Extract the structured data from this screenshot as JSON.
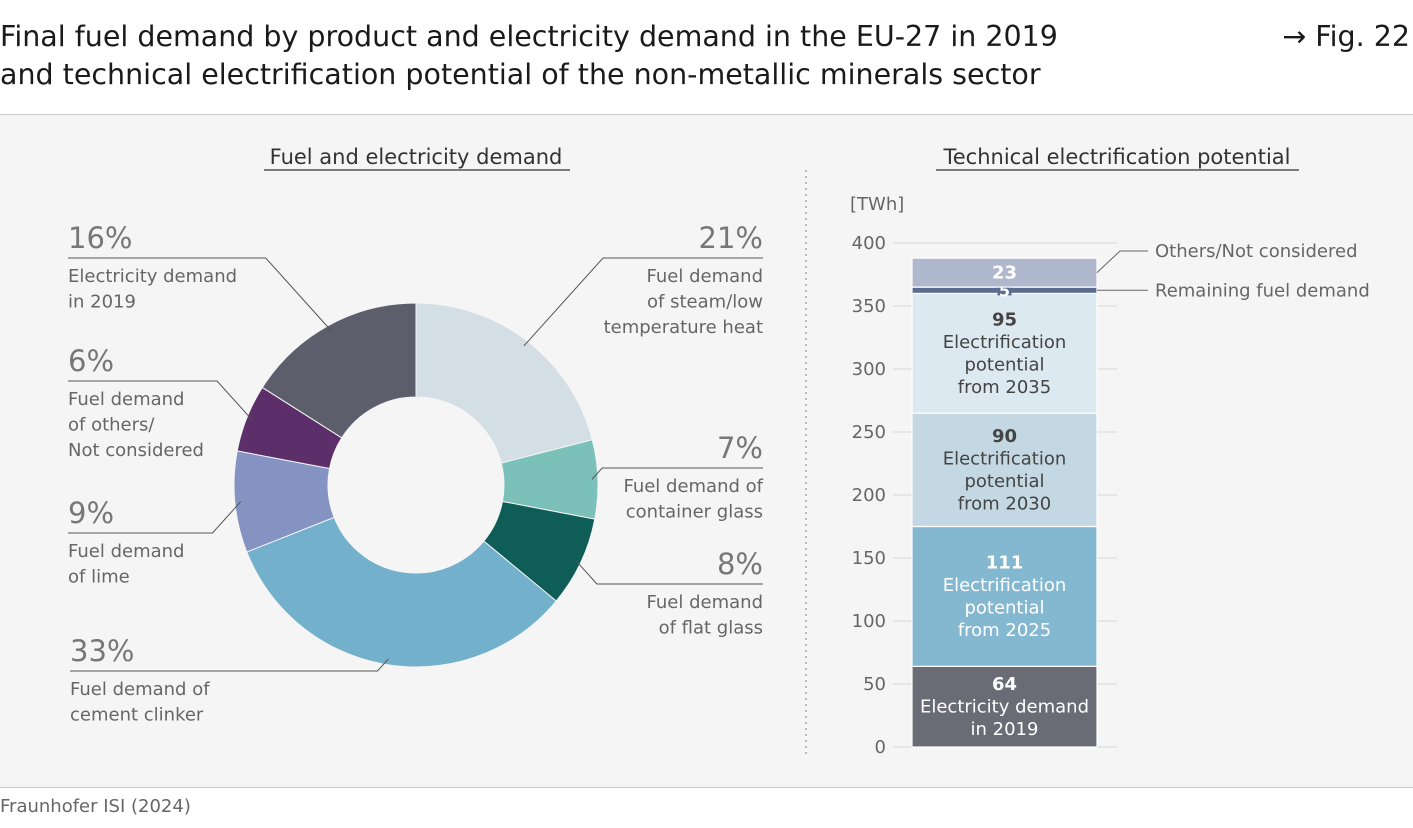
{
  "header": {
    "title_line1": "Final fuel demand by product and electricity demand in the EU-27 in 2019",
    "title_line2": "and technical electrification potential of the non-metallic minerals sector",
    "fig_ref": "→ Fig. 22"
  },
  "footer": {
    "source": "Fraunhofer ISI (2024)"
  },
  "colors": {
    "electricity": "#5c5e6b",
    "steam": "#d4dee5",
    "container_glass": "#7cc0ba",
    "flat_glass": "#0e5d56",
    "cement": "#72b0cb",
    "lime": "#8493c2",
    "others": "#5c2f6a",
    "bar_electricity": "#6b6b76",
    "bar_2025": "#84b8d0",
    "bar_2030": "#c4d8e3",
    "bar_2035": "#dde9f1",
    "bar_remaining": "#5c6b8e",
    "bar_others": "#b0b8cd"
  },
  "chart_data": [
    {
      "type": "pie",
      "title": "Fuel and electricity demand",
      "slices": [
        {
          "pct_label": "21%",
          "value": 21,
          "label_lines": [
            "Fuel demand",
            "of steam/low",
            "temperature heat"
          ]
        },
        {
          "pct_label": "7%",
          "value": 7,
          "label_lines": [
            "Fuel demand of",
            "container glass"
          ]
        },
        {
          "pct_label": "8%",
          "value": 8,
          "label_lines": [
            "Fuel demand",
            "of flat glass"
          ]
        },
        {
          "pct_label": "33%",
          "value": 33,
          "label_lines": [
            "Fuel demand of",
            "cement clinker"
          ]
        },
        {
          "pct_label": "9%",
          "value": 9,
          "label_lines": [
            "Fuel demand",
            "of lime"
          ]
        },
        {
          "pct_label": "6%",
          "value": 6,
          "label_lines": [
            "Fuel demand",
            "of others/",
            "Not considered"
          ]
        },
        {
          "pct_label": "16%",
          "value": 16,
          "label_lines": [
            "Electricity demand",
            "in 2019"
          ]
        }
      ]
    },
    {
      "type": "bar",
      "stacked": true,
      "title": "Technical electrification potential",
      "unit": "[TWh]",
      "ylim": [
        0,
        400
      ],
      "yticks": [
        0,
        50,
        100,
        150,
        200,
        250,
        300,
        350,
        400
      ],
      "segments": [
        {
          "value": 64,
          "label_lines": [
            "Electricity demand",
            "in 2019"
          ]
        },
        {
          "value": 111,
          "label_lines": [
            "Electrification",
            "potential",
            "from 2025"
          ]
        },
        {
          "value": 90,
          "label_lines": [
            "Electrification",
            "potential",
            "from 2030"
          ]
        },
        {
          "value": 95,
          "label_lines": [
            "Electrification",
            "potential",
            "from 2035"
          ]
        },
        {
          "value": 5,
          "label_lines": [],
          "side_label": "Remaining fuel demand"
        },
        {
          "value": 23,
          "label_lines": [],
          "side_label": "Others/Not considered"
        }
      ]
    }
  ]
}
